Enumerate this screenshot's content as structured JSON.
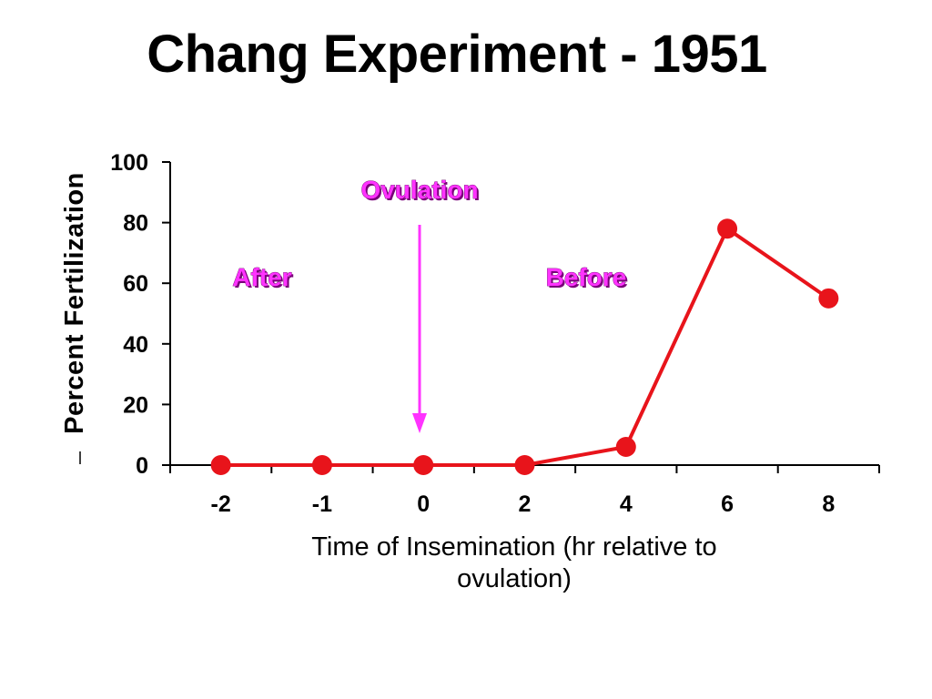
{
  "title": "Chang Experiment - 1951",
  "colors": {
    "series": "#e8141b",
    "annotation": "#ff33ff",
    "axis": "#000000"
  },
  "chart_data": {
    "type": "line",
    "categories": [
      "-2",
      "-1",
      "0",
      "2",
      "4",
      "6",
      "8"
    ],
    "series": [
      {
        "values": [
          0,
          0,
          0,
          0,
          6,
          78,
          55
        ]
      }
    ],
    "xlabel_line1": "Time of Insemination (hr relative to",
    "xlabel_line2": "ovulation)",
    "ylabel": "Percent Fertilization",
    "ylim": [
      0,
      100
    ],
    "yticks": [
      "0",
      "20",
      "40",
      "60",
      "80",
      "100"
    ],
    "grid": false,
    "annotations": {
      "ovulation": "Ovulation",
      "after": "After",
      "before": "Before",
      "arrow_at_category": "0"
    }
  }
}
